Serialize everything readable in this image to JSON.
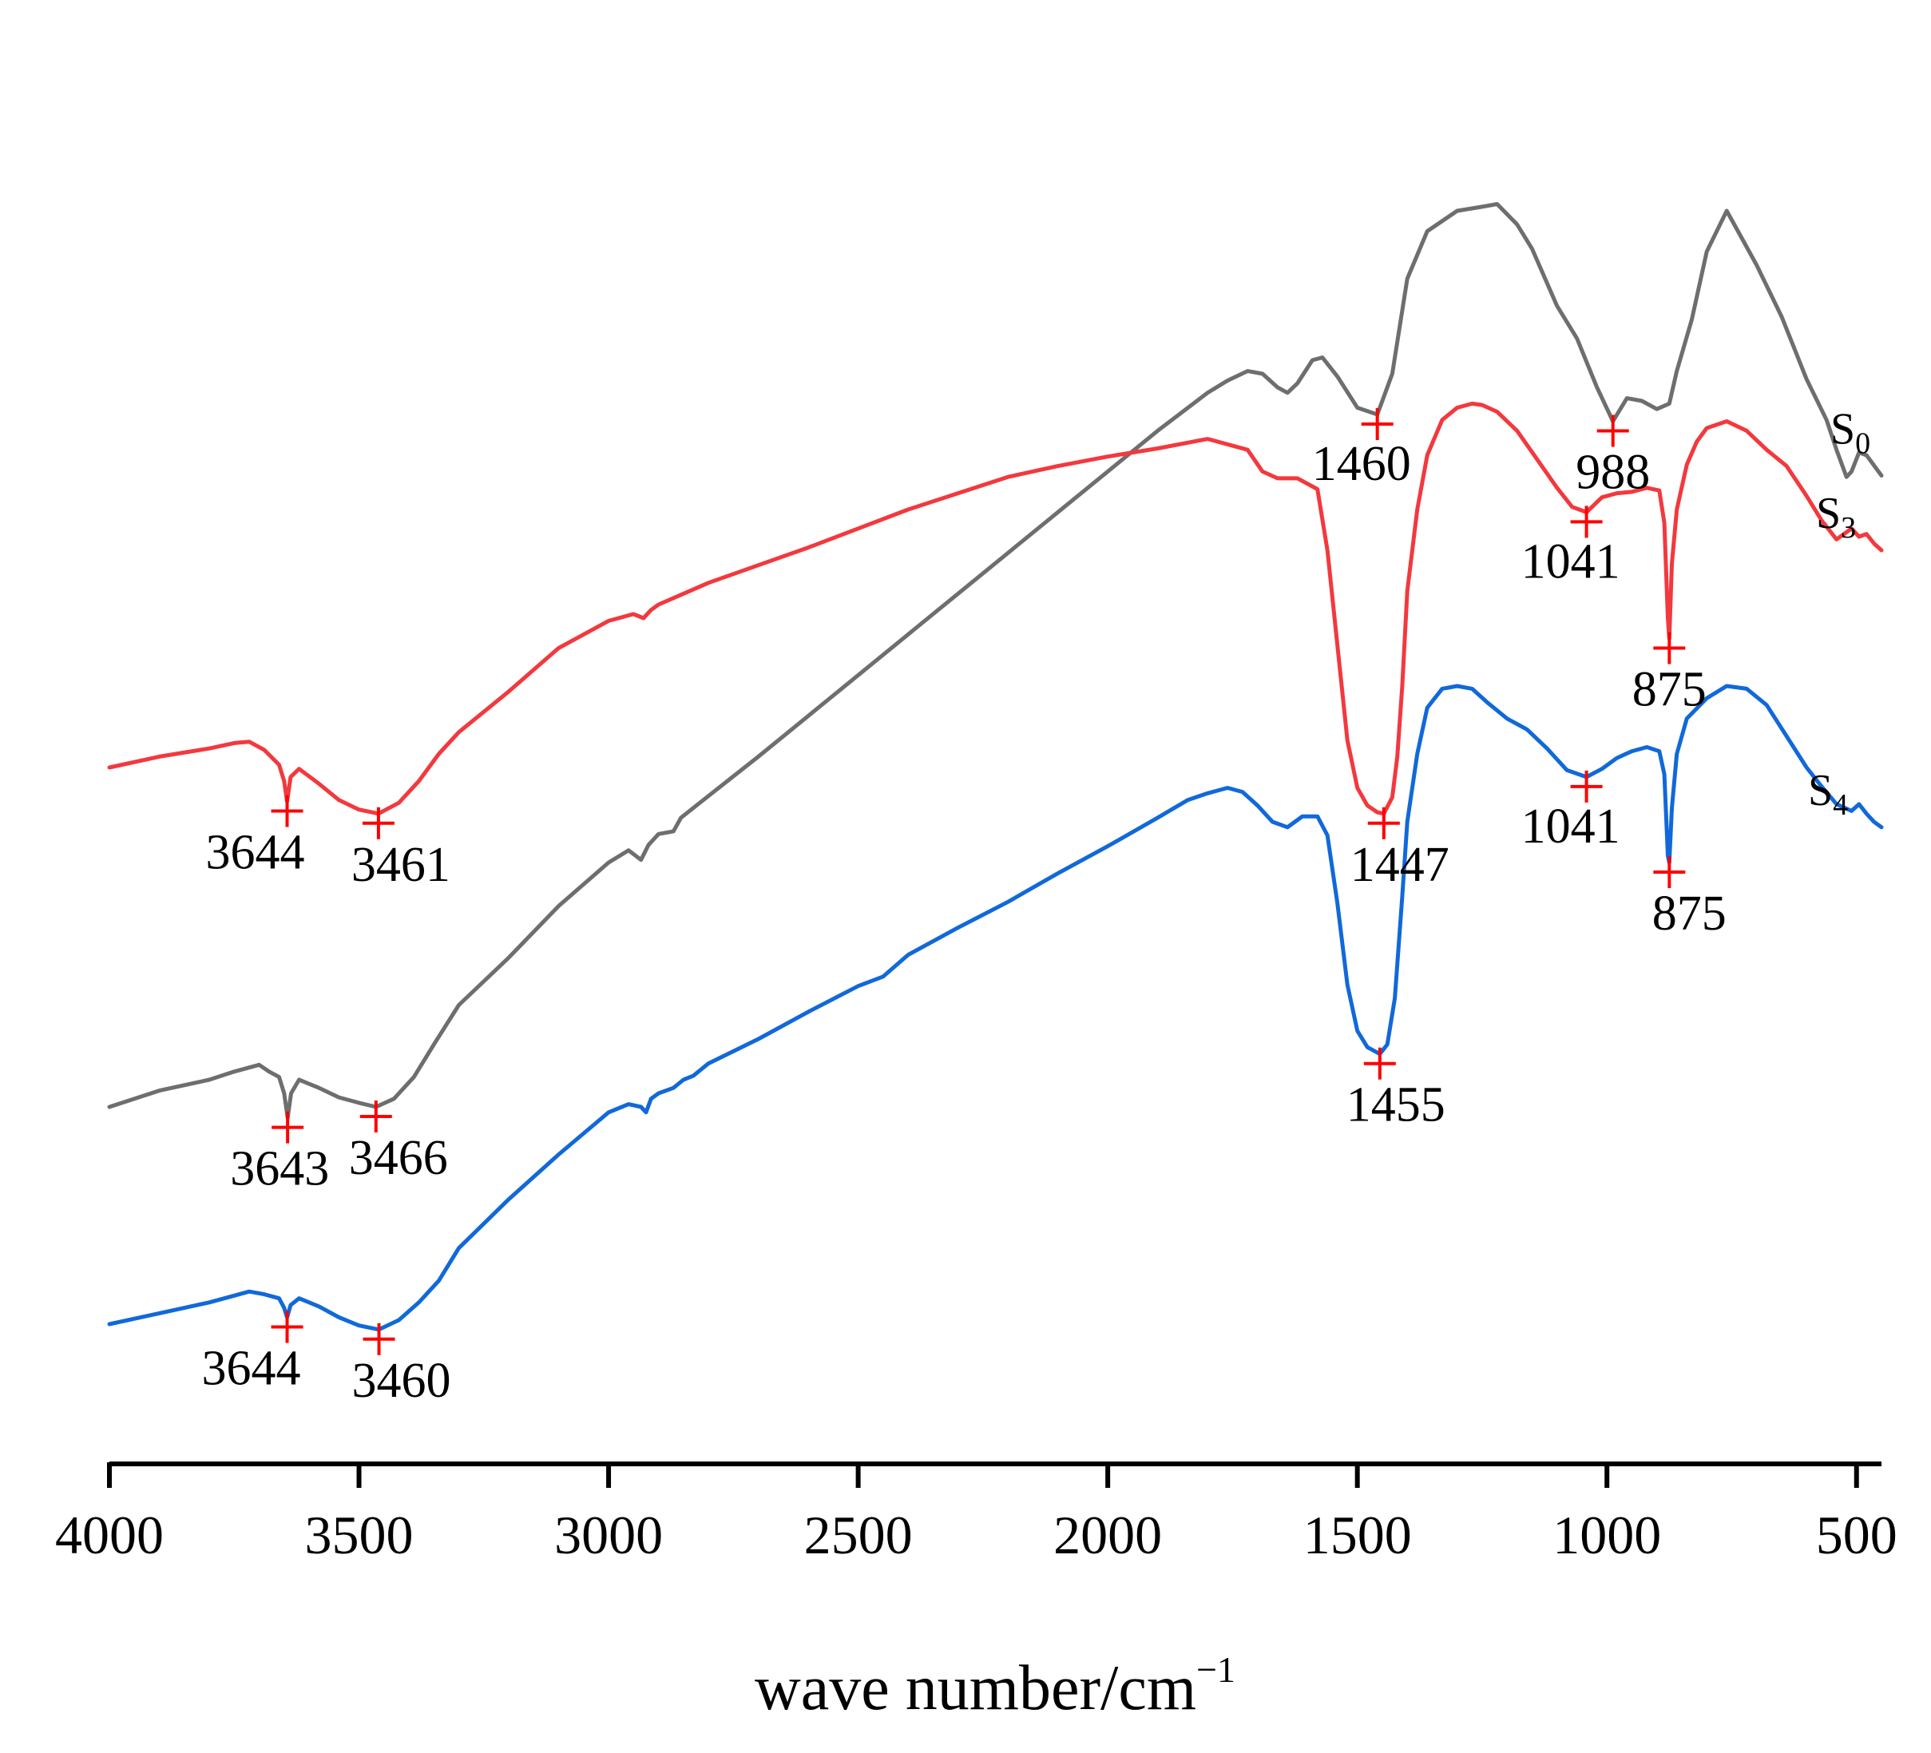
{
  "chart_data": {
    "type": "line",
    "title": "",
    "xlabel": "wave number/cm",
    "xlabel_superscript": "−1",
    "ylabel": "",
    "xlim": [
      4000,
      450
    ],
    "x_reversed": true,
    "x_ticks": [
      4000,
      3500,
      3000,
      2500,
      2000,
      1500,
      1000,
      500
    ],
    "x_tick_labels": [
      "4000",
      "3500",
      "3000",
      "2500",
      "2000",
      "1500",
      "1000",
      "500"
    ],
    "y_axis_visible": false,
    "ylim": [
      0,
      100
    ],
    "grid": false,
    "series": [
      {
        "name": "S0",
        "label_main": "S",
        "label_sub": "0",
        "color": "#6e6e6e",
        "points": [
          [
            4000,
            22.0
          ],
          [
            3900,
            23.2
          ],
          [
            3800,
            24.0
          ],
          [
            3750,
            24.6
          ],
          [
            3700,
            25.1
          ],
          [
            3680,
            24.6
          ],
          [
            3660,
            24.2
          ],
          [
            3650,
            23.0
          ],
          [
            3643,
            21.2
          ],
          [
            3636,
            23.0
          ],
          [
            3620,
            24.0
          ],
          [
            3580,
            23.4
          ],
          [
            3540,
            22.7
          ],
          [
            3500,
            22.3
          ],
          [
            3466,
            22.0
          ],
          [
            3430,
            22.6
          ],
          [
            3390,
            24.2
          ],
          [
            3350,
            26.6
          ],
          [
            3300,
            29.5
          ],
          [
            3200,
            33.0
          ],
          [
            3100,
            36.8
          ],
          [
            3000,
            40.0
          ],
          [
            2960,
            40.9
          ],
          [
            2935,
            40.2
          ],
          [
            2920,
            41.3
          ],
          [
            2900,
            42.1
          ],
          [
            2870,
            42.3
          ],
          [
            2855,
            43.3
          ],
          [
            2800,
            44.9
          ],
          [
            2700,
            47.8
          ],
          [
            2600,
            50.8
          ],
          [
            2500,
            53.8
          ],
          [
            2400,
            56.8
          ],
          [
            2300,
            59.8
          ],
          [
            2200,
            62.8
          ],
          [
            2100,
            65.8
          ],
          [
            2000,
            68.8
          ],
          [
            1900,
            71.8
          ],
          [
            1800,
            74.6
          ],
          [
            1760,
            75.5
          ],
          [
            1720,
            76.2
          ],
          [
            1690,
            76.0
          ],
          [
            1660,
            75.0
          ],
          [
            1640,
            74.6
          ],
          [
            1620,
            75.3
          ],
          [
            1590,
            77.0
          ],
          [
            1570,
            77.2
          ],
          [
            1540,
            75.8
          ],
          [
            1500,
            73.5
          ],
          [
            1460,
            73.0
          ],
          [
            1430,
            76.0
          ],
          [
            1400,
            83.0
          ],
          [
            1360,
            86.5
          ],
          [
            1300,
            88.0
          ],
          [
            1250,
            88.3
          ],
          [
            1220,
            88.5
          ],
          [
            1180,
            87.0
          ],
          [
            1150,
            85.2
          ],
          [
            1100,
            81.0
          ],
          [
            1060,
            78.6
          ],
          [
            1020,
            75.0
          ],
          [
            988,
            72.5
          ],
          [
            960,
            74.2
          ],
          [
            930,
            74.0
          ],
          [
            900,
            73.4
          ],
          [
            875,
            73.8
          ],
          [
            860,
            76.2
          ],
          [
            830,
            80.0
          ],
          [
            800,
            85.0
          ],
          [
            760,
            88.0
          ],
          [
            730,
            86.0
          ],
          [
            700,
            84.0
          ],
          [
            650,
            80.2
          ],
          [
            600,
            75.6
          ],
          [
            560,
            72.6
          ],
          [
            540,
            70.4
          ],
          [
            520,
            68.4
          ],
          [
            510,
            68.8
          ],
          [
            495,
            70.2
          ],
          [
            480,
            70.0
          ],
          [
            470,
            69.5
          ],
          [
            460,
            69.0
          ],
          [
            450,
            68.5
          ]
        ]
      },
      {
        "name": "S3",
        "label_main": "S",
        "label_sub": "3",
        "color": "#f2393e",
        "points": [
          [
            4000,
            47.0
          ],
          [
            3900,
            47.8
          ],
          [
            3800,
            48.4
          ],
          [
            3750,
            48.8
          ],
          [
            3720,
            48.9
          ],
          [
            3690,
            48.3
          ],
          [
            3660,
            47.2
          ],
          [
            3650,
            46.0
          ],
          [
            3644,
            44.5
          ],
          [
            3637,
            46.3
          ],
          [
            3620,
            46.9
          ],
          [
            3580,
            45.8
          ],
          [
            3540,
            44.6
          ],
          [
            3500,
            43.9
          ],
          [
            3461,
            43.6
          ],
          [
            3420,
            44.4
          ],
          [
            3380,
            46.0
          ],
          [
            3340,
            48.0
          ],
          [
            3300,
            49.6
          ],
          [
            3200,
            52.6
          ],
          [
            3100,
            55.8
          ],
          [
            3000,
            57.8
          ],
          [
            2950,
            58.3
          ],
          [
            2930,
            58.0
          ],
          [
            2915,
            58.6
          ],
          [
            2900,
            59.0
          ],
          [
            2850,
            59.8
          ],
          [
            2800,
            60.6
          ],
          [
            2700,
            61.9
          ],
          [
            2600,
            63.2
          ],
          [
            2500,
            64.6
          ],
          [
            2400,
            66.0
          ],
          [
            2300,
            67.2
          ],
          [
            2200,
            68.4
          ],
          [
            2100,
            69.2
          ],
          [
            2000,
            69.9
          ],
          [
            1900,
            70.5
          ],
          [
            1800,
            71.2
          ],
          [
            1720,
            70.4
          ],
          [
            1690,
            68.8
          ],
          [
            1660,
            68.3
          ],
          [
            1620,
            68.3
          ],
          [
            1580,
            67.5
          ],
          [
            1560,
            63.0
          ],
          [
            1540,
            56.0
          ],
          [
            1520,
            49.0
          ],
          [
            1500,
            45.5
          ],
          [
            1480,
            44.2
          ],
          [
            1460,
            43.7
          ],
          [
            1447,
            43.6
          ],
          [
            1430,
            44.8
          ],
          [
            1420,
            47.8
          ],
          [
            1410,
            53.0
          ],
          [
            1400,
            60.0
          ],
          [
            1380,
            66.0
          ],
          [
            1360,
            70.0
          ],
          [
            1330,
            72.6
          ],
          [
            1300,
            73.5
          ],
          [
            1270,
            73.8
          ],
          [
            1250,
            73.7
          ],
          [
            1220,
            73.2
          ],
          [
            1180,
            71.8
          ],
          [
            1140,
            69.7
          ],
          [
            1100,
            67.6
          ],
          [
            1070,
            66.2
          ],
          [
            1041,
            65.8
          ],
          [
            1010,
            66.9
          ],
          [
            980,
            67.2
          ],
          [
            950,
            67.3
          ],
          [
            920,
            67.6
          ],
          [
            895,
            67.4
          ],
          [
            885,
            65.0
          ],
          [
            878,
            58.0
          ],
          [
            875,
            56.5
          ],
          [
            870,
            62.0
          ],
          [
            860,
            66.0
          ],
          [
            840,
            69.3
          ],
          [
            820,
            71.0
          ],
          [
            800,
            72.0
          ],
          [
            760,
            72.5
          ],
          [
            720,
            71.8
          ],
          [
            680,
            70.4
          ],
          [
            640,
            69.2
          ],
          [
            600,
            67.0
          ],
          [
            570,
            65.2
          ],
          [
            540,
            63.8
          ],
          [
            510,
            64.6
          ],
          [
            495,
            64.0
          ],
          [
            480,
            64.2
          ],
          [
            465,
            63.5
          ],
          [
            450,
            63.0
          ]
        ]
      },
      {
        "name": "S4",
        "label_main": "S",
        "label_sub": "4",
        "color": "#1169d9",
        "points": [
          [
            4000,
            6.0
          ],
          [
            3900,
            6.8
          ],
          [
            3800,
            7.6
          ],
          [
            3750,
            8.1
          ],
          [
            3720,
            8.4
          ],
          [
            3690,
            8.2
          ],
          [
            3660,
            7.9
          ],
          [
            3650,
            7.2
          ],
          [
            3644,
            6.5
          ],
          [
            3637,
            7.4
          ],
          [
            3620,
            7.9
          ],
          [
            3580,
            7.3
          ],
          [
            3540,
            6.5
          ],
          [
            3500,
            5.9
          ],
          [
            3460,
            5.6
          ],
          [
            3420,
            6.3
          ],
          [
            3380,
            7.6
          ],
          [
            3340,
            9.2
          ],
          [
            3300,
            11.6
          ],
          [
            3200,
            15.2
          ],
          [
            3100,
            18.5
          ],
          [
            3000,
            21.6
          ],
          [
            2960,
            22.2
          ],
          [
            2935,
            22.0
          ],
          [
            2925,
            21.6
          ],
          [
            2915,
            22.6
          ],
          [
            2900,
            23.0
          ],
          [
            2870,
            23.4
          ],
          [
            2850,
            24.0
          ],
          [
            2830,
            24.3
          ],
          [
            2800,
            25.2
          ],
          [
            2700,
            27.0
          ],
          [
            2600,
            29.0
          ],
          [
            2500,
            30.9
          ],
          [
            2450,
            31.6
          ],
          [
            2400,
            33.2
          ],
          [
            2300,
            35.2
          ],
          [
            2200,
            37.1
          ],
          [
            2100,
            39.2
          ],
          [
            2000,
            41.2
          ],
          [
            1900,
            43.3
          ],
          [
            1840,
            44.6
          ],
          [
            1800,
            45.1
          ],
          [
            1760,
            45.5
          ],
          [
            1730,
            45.2
          ],
          [
            1700,
            44.2
          ],
          [
            1670,
            43.0
          ],
          [
            1640,
            42.6
          ],
          [
            1610,
            43.4
          ],
          [
            1580,
            43.4
          ],
          [
            1560,
            42.0
          ],
          [
            1540,
            37.0
          ],
          [
            1520,
            31.0
          ],
          [
            1500,
            27.6
          ],
          [
            1480,
            26.4
          ],
          [
            1455,
            25.9
          ],
          [
            1440,
            26.6
          ],
          [
            1425,
            30.0
          ],
          [
            1410,
            37.5
          ],
          [
            1400,
            43.0
          ],
          [
            1380,
            48.0
          ],
          [
            1360,
            51.4
          ],
          [
            1330,
            52.8
          ],
          [
            1300,
            53.0
          ],
          [
            1270,
            52.8
          ],
          [
            1240,
            51.8
          ],
          [
            1200,
            50.6
          ],
          [
            1160,
            49.8
          ],
          [
            1120,
            48.4
          ],
          [
            1080,
            46.8
          ],
          [
            1041,
            46.3
          ],
          [
            1010,
            46.9
          ],
          [
            980,
            47.7
          ],
          [
            950,
            48.2
          ],
          [
            920,
            48.5
          ],
          [
            895,
            48.2
          ],
          [
            885,
            46.5
          ],
          [
            878,
            40.5
          ],
          [
            875,
            40.0
          ],
          [
            870,
            44.0
          ],
          [
            860,
            48.0
          ],
          [
            840,
            50.6
          ],
          [
            800,
            52.1
          ],
          [
            760,
            53.0
          ],
          [
            720,
            52.8
          ],
          [
            680,
            51.6
          ],
          [
            640,
            49.3
          ],
          [
            600,
            47.0
          ],
          [
            570,
            45.6
          ],
          [
            540,
            44.3
          ],
          [
            510,
            43.8
          ],
          [
            495,
            44.3
          ],
          [
            480,
            43.6
          ],
          [
            465,
            43.0
          ],
          [
            450,
            42.6
          ]
        ]
      }
    ],
    "annotations": [
      {
        "series": "S0",
        "x": 3643,
        "label": "3643",
        "marker": "+",
        "color": "#ff0000"
      },
      {
        "series": "S0",
        "x": 3466,
        "label": "3466",
        "marker": "+",
        "color": "#ff0000"
      },
      {
        "series": "S0",
        "x": 1460,
        "label": "1460",
        "marker": "+",
        "color": "#ff0000"
      },
      {
        "series": "S0",
        "x": 988,
        "label": "988",
        "marker": "+",
        "color": "#ff0000"
      },
      {
        "series": "S3",
        "x": 3644,
        "label": "3644",
        "marker": "+",
        "color": "#ff0000"
      },
      {
        "series": "S3",
        "x": 3461,
        "label": "3461",
        "marker": "+",
        "color": "#ff0000"
      },
      {
        "series": "S3",
        "x": 1447,
        "label": "1447",
        "marker": "+",
        "color": "#ff0000"
      },
      {
        "series": "S3",
        "x": 1041,
        "label": "1041",
        "marker": "+",
        "color": "#ff0000"
      },
      {
        "series": "S3",
        "x": 875,
        "label": "875",
        "marker": "+",
        "color": "#ff0000"
      },
      {
        "series": "S4",
        "x": 3644,
        "label": "3644",
        "marker": "+",
        "color": "#ff0000"
      },
      {
        "series": "S4",
        "x": 3460,
        "label": "3460",
        "marker": "+",
        "color": "#ff0000"
      },
      {
        "series": "S4",
        "x": 1455,
        "label": "1455",
        "marker": "+",
        "color": "#ff0000"
      },
      {
        "series": "S4",
        "x": 1041,
        "label": "1041",
        "marker": "+",
        "color": "#ff0000"
      },
      {
        "series": "S4",
        "x": 875,
        "label": "875",
        "marker": "+",
        "color": "#ff0000"
      }
    ]
  }
}
